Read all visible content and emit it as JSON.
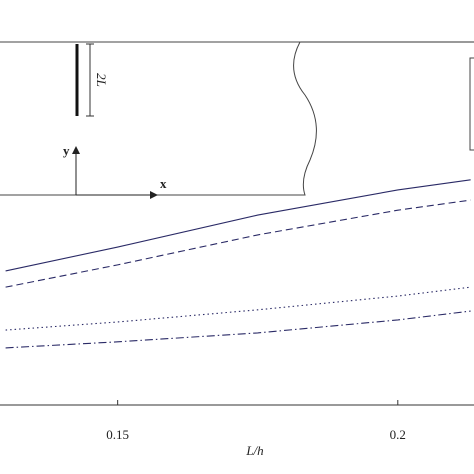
{
  "chart_data": {
    "type": "line",
    "x_label": "L/h",
    "x": [
      0.13,
      0.15,
      0.175,
      0.2,
      0.213
    ],
    "series": [
      {
        "color": "#2a2a66",
        "style": "solid",
        "values": [
          0.331,
          0.39,
          0.469,
          0.531,
          0.556
        ]
      },
      {
        "color": "#2a2a66",
        "style": "dashed",
        "values": [
          0.291,
          0.346,
          0.42,
          0.481,
          0.506
        ]
      },
      {
        "color": "#2a2a66",
        "style": "dotted",
        "values": [
          0.185,
          0.205,
          0.235,
          0.269,
          0.291
        ]
      },
      {
        "color": "#2a2a66",
        "style": "dashdot",
        "values": [
          0.141,
          0.156,
          0.178,
          0.21,
          0.232
        ]
      }
    ],
    "xlim": [
      0.129,
      0.2136
    ],
    "xticks": [
      0.15,
      0.2
    ],
    "ylim": [
      0,
      1
    ],
    "inset": {
      "crack_label": "2L",
      "y_label": "y",
      "x_label": "x"
    }
  }
}
